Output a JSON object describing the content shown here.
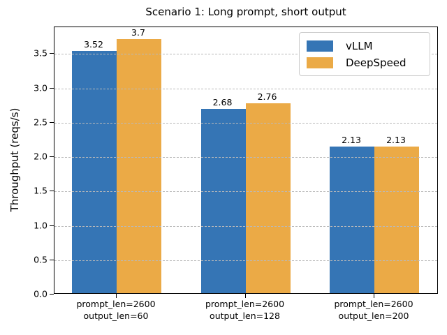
{
  "chart_data": {
    "type": "bar",
    "title": "Scenario 1: Long prompt, short output",
    "xlabel": "",
    "ylabel": "Throughput (reqs/s)",
    "categories": [
      [
        "prompt_len=2600",
        "output_len=60"
      ],
      [
        "prompt_len=2600",
        "output_len=128"
      ],
      [
        "prompt_len=2600",
        "output_len=200"
      ]
    ],
    "series": [
      {
        "name": "vLLM",
        "color": "#3575b5",
        "values": [
          3.52,
          2.68,
          2.13
        ]
      },
      {
        "name": "DeepSpeed",
        "color": "#ebaa46",
        "values": [
          3.7,
          2.76,
          2.13
        ]
      }
    ],
    "yticks": [
      0.0,
      0.5,
      1.0,
      1.5,
      2.0,
      2.5,
      3.0,
      3.5
    ],
    "ylim": [
      0,
      3.89
    ],
    "grid": "dashed-horizontal",
    "grid_color": "#b9b9b9",
    "legend_position": "upper right",
    "background": "#ffffff"
  }
}
